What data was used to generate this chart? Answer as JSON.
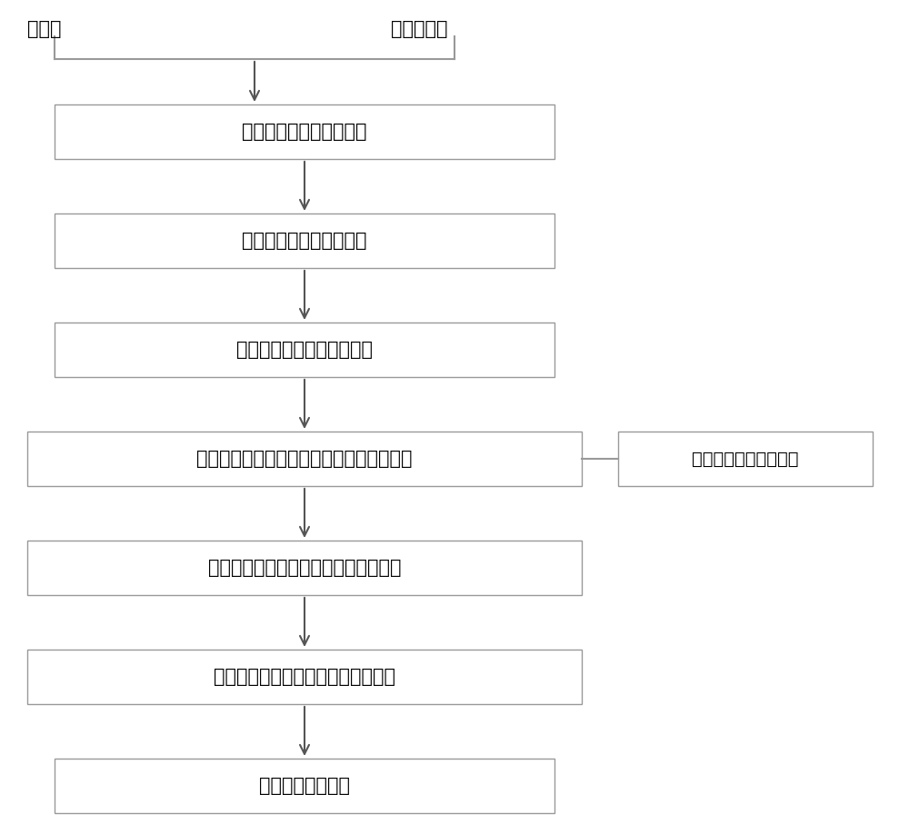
{
  "background_color": "#ffffff",
  "fig_width": 10.0,
  "fig_height": 9.07,
  "dpi": 100,
  "label_floating": "浮动车",
  "label_microwave": "微波检测器",
  "label_history": "路段平均速度历史数据",
  "box_texts": [
    "获取原始的路段平均速度",
    "进行路段平均速度的融合",
    "按照时间序列排序储存数据",
    "基于时间序列预测下一个周期路段平均速度",
    "计算下一个周期的路段平均速度预测値",
    "计算下一个周期的路段交通拥堵指数",
    "交通运行分级预警"
  ],
  "box_edge_color": "#999999",
  "box_face_color": "#ffffff",
  "text_color": "#000000",
  "arrow_color": "#555555",
  "line_color": "#999999",
  "font_size": 15,
  "label_font_size": 15,
  "hist_font_size": 14
}
